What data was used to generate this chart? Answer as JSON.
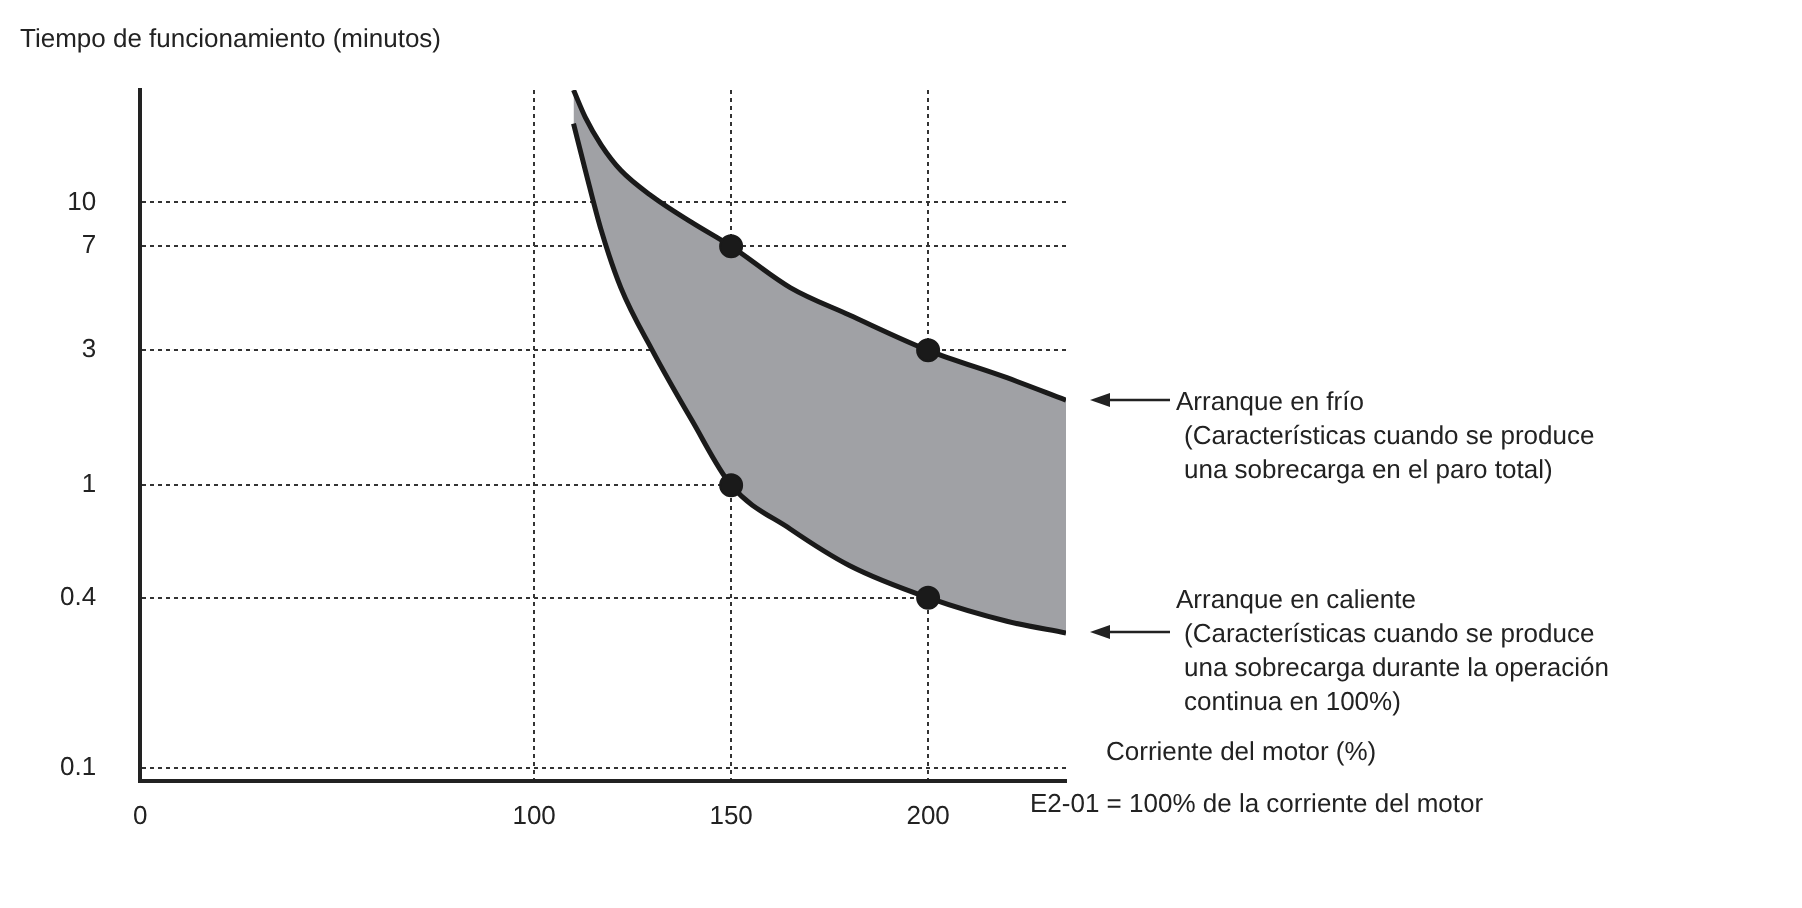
{
  "chart_data": {
    "type": "line",
    "xlabel": "Corriente del motor (%)",
    "ylabel": "Tiempo de funcionamiento (minutos)",
    "series": [
      {
        "color": "#1a1a1a",
        "x": [
          110,
          113,
          117,
          122,
          130,
          140,
          150,
          165,
          180,
          200,
          220,
          235
        ],
        "values": [
          25,
          20,
          16,
          13,
          10.5,
          8.5,
          7,
          5,
          4,
          3,
          2.4,
          2
        ],
        "lower": [
          19,
          13,
          8,
          5,
          3,
          1.7,
          1,
          0.7,
          0.52,
          0.4,
          0.33,
          0.3
        ],
        "upper": [
          25,
          20,
          16,
          13,
          10.5,
          8.5,
          7,
          5,
          4,
          3,
          2.4,
          2
        ]
      },
      {
        "color": "#1a1a1a",
        "x": [
          110,
          113,
          117,
          122,
          130,
          140,
          150,
          165,
          180,
          200,
          220,
          235
        ],
        "values": [
          19,
          13,
          8,
          5,
          3,
          1.7,
          1,
          0.7,
          0.52,
          0.4,
          0.33,
          0.3
        ]
      },
      {
        "type": "scatter",
        "color": "#1a1a1a",
        "marker": "circle",
        "x": [
          150,
          200,
          150,
          200
        ],
        "values": [
          7,
          3,
          1,
          0.4
        ]
      }
    ],
    "xlim": [
      0,
      235
    ],
    "xticks": [
      0,
      100,
      150,
      200
    ],
    "ylim": [
      0.09,
      25
    ],
    "yticks": [
      0.1,
      0.4,
      1,
      3,
      7,
      10
    ],
    "log": "y",
    "grid": true,
    "legend": false,
    "line_style": "solid",
    "annotations": [
      "Arranque en frío\n(Características cuando se produce\nuna sobrecarga en el paro total)",
      "Arranque en caliente\n(Características cuando se produce\nuna sobrecarga durante la operación\ncontinua en 100%)",
      "E2-01 = 100% de la corriente del motor"
    ]
  }
}
